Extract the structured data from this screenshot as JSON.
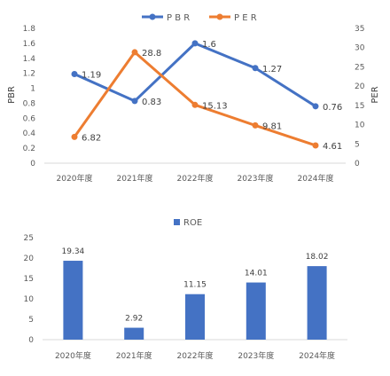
{
  "chart_data": [
    {
      "type": "line",
      "categories": [
        "2020年度",
        "2021年度",
        "2022年度",
        "2023年度",
        "2024年度"
      ],
      "series": [
        {
          "name": "P B R",
          "axis": "left",
          "color": "#4472C4",
          "values": [
            1.19,
            0.83,
            1.6,
            1.27,
            0.76
          ],
          "labels": [
            "1.19",
            "0.83",
            "1.6",
            "1.27",
            "0.76"
          ]
        },
        {
          "name": "P E R",
          "axis": "right",
          "color": "#ED7D31",
          "values": [
            6.82,
            28.8,
            15.13,
            9.81,
            4.61
          ],
          "labels": [
            "6.82",
            "28.8",
            "15.13",
            "9.81",
            "4.61"
          ]
        }
      ],
      "ylabel": "PBR",
      "y2label": "PER",
      "ylim": [
        0,
        1.8
      ],
      "yticks": [
        "0",
        "0.2",
        "0.4",
        "0.6",
        "0.8",
        "1",
        "1.2",
        "1.4",
        "1.6",
        "1.8"
      ],
      "y2lim": [
        0,
        35
      ],
      "y2ticks": [
        "0",
        "5",
        "10",
        "15",
        "20",
        "25",
        "30",
        "35"
      ],
      "legend": "top",
      "grid": false
    },
    {
      "type": "bar",
      "categories": [
        "2020年度",
        "2021年度",
        "2022年度",
        "2023年度",
        "2024年度"
      ],
      "series": [
        {
          "name": "ROE",
          "color": "#4472C4",
          "values": [
            19.34,
            2.92,
            11.15,
            14.01,
            18.02
          ],
          "labels": [
            "19.34",
            "2.92",
            "11.15",
            "14.01",
            "18.02"
          ]
        }
      ],
      "ylim": [
        0,
        25
      ],
      "yticks": [
        "0",
        "5",
        "10",
        "15",
        "20",
        "25"
      ],
      "legend": "top",
      "grid": false
    }
  ]
}
